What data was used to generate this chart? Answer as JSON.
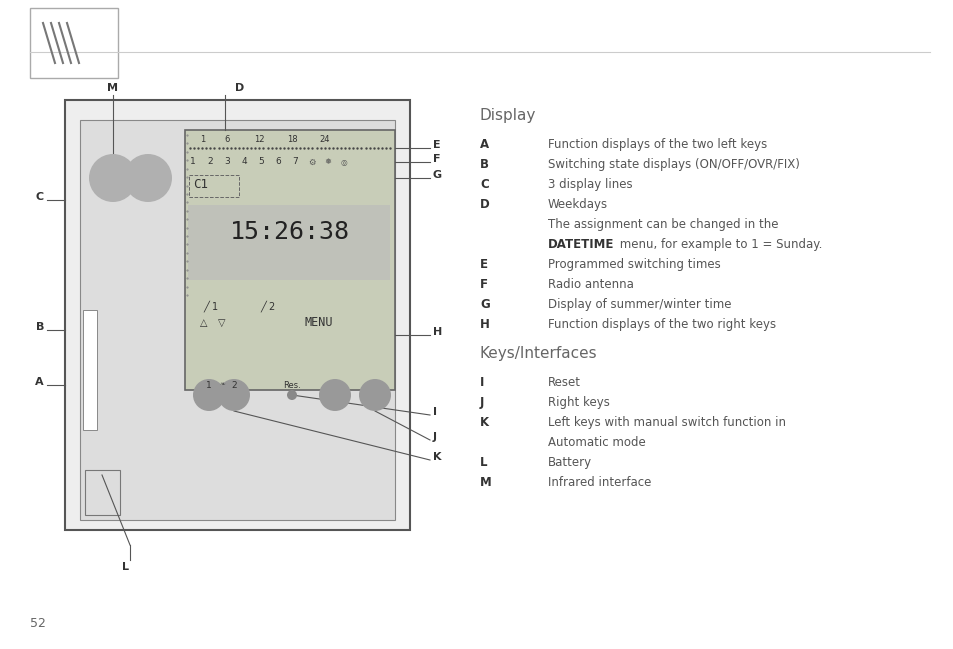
{
  "bg_color": "#ffffff",
  "text_color": "#555555",
  "label_color": "#444444",
  "page_number": "52",
  "display_title": "Display",
  "keys_title": "Keys/Interfaces",
  "display_items": [
    [
      "A",
      "Function displays of the two left keys"
    ],
    [
      "B",
      "Switching state displays (ON/OFF/OVR/FIX)"
    ],
    [
      "C",
      "3 display lines"
    ],
    [
      "D",
      "Weekdays"
    ],
    [
      "",
      "The assignment can be changed in the"
    ],
    [
      "",
      "DATETIME_BOLD menu, for example to 1 = Sunday."
    ],
    [
      "E",
      "Programmed switching times"
    ],
    [
      "F",
      "Radio antenna"
    ],
    [
      "G",
      "Display of summer/winter time"
    ],
    [
      "H",
      "Function displays of the two right keys"
    ]
  ],
  "keys_items": [
    [
      "I",
      "Reset"
    ],
    [
      "J",
      "Right keys"
    ],
    [
      "K",
      "Left keys with manual switch function in"
    ],
    [
      "",
      "Automatic mode"
    ],
    [
      "L",
      "Battery"
    ],
    [
      "M",
      "Infrared interface"
    ]
  ],
  "hour_labels": [
    [
      "1",
      0.212
    ],
    [
      "6",
      0.238
    ],
    [
      "12",
      0.272
    ],
    [
      "18",
      0.307
    ],
    [
      "24",
      0.34
    ]
  ],
  "day_labels": [
    "1",
    "2",
    "3",
    "4",
    "5",
    "6",
    "7"
  ],
  "time_text": "15:26:38",
  "menu_text": "MENU",
  "res_text": "Res."
}
